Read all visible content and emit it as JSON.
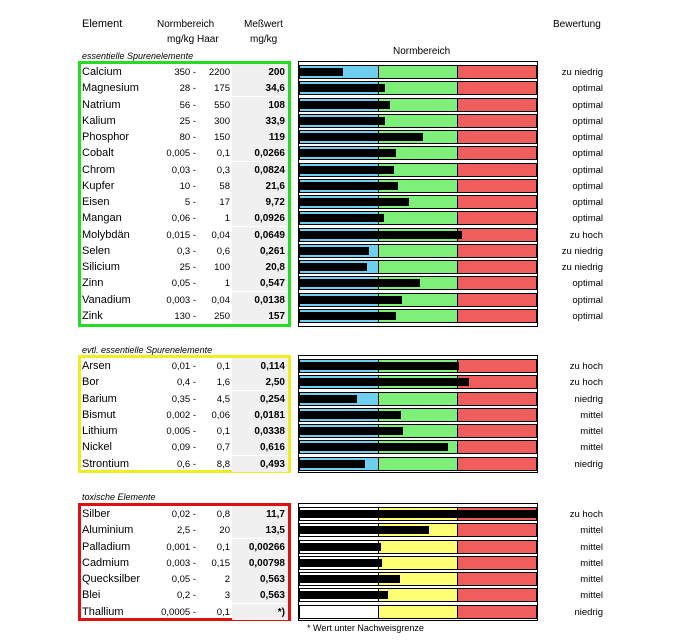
{
  "header": {
    "element": "Element",
    "norm_top": "Normbereich",
    "norm_unit": "mg/kg Haar",
    "measured_top": "Meßwert",
    "measured_unit": "mg/kg",
    "chart_title": "Normbereich",
    "rating": "Bewertung"
  },
  "colors": {
    "low": "#6fcff0",
    "green": "#7ef07a",
    "yellow": "#ffff73",
    "red": "#f05d5d",
    "section1_border": "#22dd22",
    "section2_border": "#eeee22",
    "section3_border": "#dd1111"
  },
  "sections": [
    {
      "title": "essentielle Spurenelemente",
      "rows": [
        {
          "name": "Calcium",
          "lo": "350 -",
          "hi": "2200",
          "value": "200",
          "bar": 0.55,
          "rating": "zu niedrig"
        },
        {
          "name": "Magnesium",
          "lo": "28 -",
          "hi": "175",
          "value": "34,6",
          "bar": 1.07,
          "rating": "optimal"
        },
        {
          "name": "Natrium",
          "lo": "56 -",
          "hi": "550",
          "value": "108",
          "bar": 1.14,
          "rating": "optimal"
        },
        {
          "name": "Kalium",
          "lo": "25 -",
          "hi": "300",
          "value": "33,9",
          "bar": 1.07,
          "rating": "optimal"
        },
        {
          "name": "Phosphor",
          "lo": "80 -",
          "hi": "150",
          "value": "119",
          "bar": 1.56,
          "rating": "optimal"
        },
        {
          "name": "Cobalt",
          "lo": "0,005 -",
          "hi": "0,1",
          "value": "0,0266",
          "bar": 1.22,
          "rating": "optimal"
        },
        {
          "name": "Chrom",
          "lo": "0,03 -",
          "hi": "0,3",
          "value": "0,0824",
          "bar": 1.19,
          "rating": "optimal"
        },
        {
          "name": "Kupfer",
          "lo": "10 -",
          "hi": "58",
          "value": "21,6",
          "bar": 1.24,
          "rating": "optimal"
        },
        {
          "name": "Eisen",
          "lo": "5 -",
          "hi": "17",
          "value": "9,72",
          "bar": 1.38,
          "rating": "optimal"
        },
        {
          "name": "Mangan",
          "lo": "0,06 -",
          "hi": "1",
          "value": "0,0926",
          "bar": 1.06,
          "rating": "optimal"
        },
        {
          "name": "Molybdän",
          "lo": "0,015 -",
          "hi": "0,04",
          "value": "0,0649",
          "bar": 2.05,
          "rating": "zu hoch"
        },
        {
          "name": "Selen",
          "lo": "0,3 -",
          "hi": "0,6",
          "value": "0,261",
          "bar": 0.87,
          "rating": "zu niedrig"
        },
        {
          "name": "Silicium",
          "lo": "25 -",
          "hi": "100",
          "value": "20,8",
          "bar": 0.85,
          "rating": "zu niedrig"
        },
        {
          "name": "Zinn",
          "lo": "0,05 -",
          "hi": "1",
          "value": "0,547",
          "bar": 1.52,
          "rating": "optimal"
        },
        {
          "name": "Vanadium",
          "lo": "0,003 -",
          "hi": "0,04",
          "value": "0,0138",
          "bar": 1.29,
          "rating": "optimal"
        },
        {
          "name": "Zink",
          "lo": "130 -",
          "hi": "250",
          "value": "157",
          "bar": 1.22,
          "rating": "optimal"
        }
      ]
    },
    {
      "title": "evtl. essentielle Spurenelemente",
      "rows": [
        {
          "name": "Arsen",
          "lo": "0,01 -",
          "hi": "0,1",
          "value": "0,114",
          "bar": 2.01,
          "rating": "zu hoch"
        },
        {
          "name": "Bor",
          "lo": "0,4 -",
          "hi": "1,6",
          "value": "2,50",
          "bar": 2.14,
          "rating": "zu hoch"
        },
        {
          "name": "Barium",
          "lo": "0,35 -",
          "hi": "4,5",
          "value": "0,254",
          "bar": 0.72,
          "rating": "niedrig"
        },
        {
          "name": "Bismut",
          "lo": "0,002 -",
          "hi": "0,06",
          "value": "0,0181",
          "bar": 1.28,
          "rating": "mittel"
        },
        {
          "name": "Lithium",
          "lo": "0,005 -",
          "hi": "0,1",
          "value": "0,0338",
          "bar": 1.3,
          "rating": "mittel"
        },
        {
          "name": "Nickel",
          "lo": "0,09 -",
          "hi": "0,7",
          "value": "0,616",
          "bar": 1.87,
          "rating": "mittel"
        },
        {
          "name": "Strontium",
          "lo": "0,6 -",
          "hi": "8,8",
          "value": "0,493",
          "bar": 0.82,
          "rating": "niedrig"
        }
      ]
    },
    {
      "title": "toxische Elemente",
      "rows": [
        {
          "name": "Silber",
          "lo": "0,02 -",
          "hi": "0,8",
          "value": "11,7",
          "bar": 3.0,
          "rating": "zu hoch"
        },
        {
          "name": "Aluminium",
          "lo": "2,5 -",
          "hi": "20",
          "value": "13,5",
          "bar": 1.63,
          "rating": "mittel"
        },
        {
          "name": "Palladium",
          "lo": "0,001 -",
          "hi": "0,1",
          "value": "0,00266",
          "bar": 1.02,
          "rating": "mittel"
        },
        {
          "name": "Cadmium",
          "lo": "0,003 -",
          "hi": "0,15",
          "value": "0,00798",
          "bar": 1.04,
          "rating": "mittel"
        },
        {
          "name": "Quecksilber",
          "lo": "0,05 -",
          "hi": "2",
          "value": "0,563",
          "bar": 1.27,
          "rating": "mittel"
        },
        {
          "name": "Blei",
          "lo": "0,2 -",
          "hi": "3",
          "value": "0,563",
          "bar": 1.11,
          "rating": "mittel"
        },
        {
          "name": "Thallium",
          "lo": "0,0005 -",
          "hi": "0,1",
          "value": "*)",
          "bar": 0,
          "rating": "niedrig"
        }
      ]
    }
  ],
  "footnote": "* Wert unter Nachweisgrenze"
}
